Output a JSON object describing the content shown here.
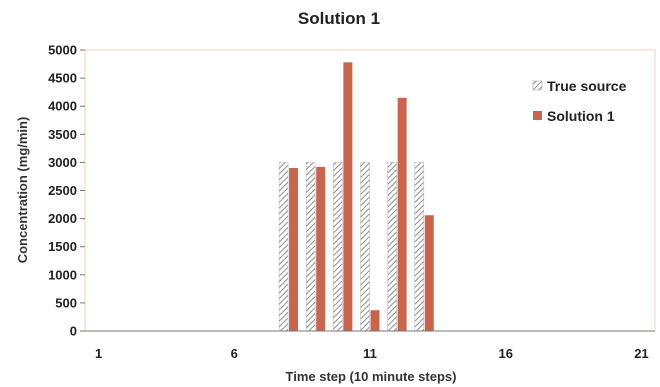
{
  "chart_data": {
    "type": "bar",
    "title": "Solution 1",
    "xlabel": "Time step (10 minute steps)",
    "ylabel": "Concentration (mg/min)",
    "x_range": [
      1,
      21
    ],
    "x_ticks": [
      1,
      6,
      11,
      16,
      21
    ],
    "ylim": [
      0,
      5000
    ],
    "y_ticks": [
      0,
      500,
      1000,
      1500,
      2000,
      2500,
      3000,
      3500,
      4000,
      4500,
      5000
    ],
    "grid": false,
    "legend_position": "right",
    "x": [
      8,
      9,
      10,
      11,
      12,
      13
    ],
    "series": [
      {
        "name": "True source",
        "color": "#9a9a9a",
        "pattern": "diagonal-hatch",
        "values": [
          3000,
          3000,
          3000,
          3000,
          3000,
          3000
        ]
      },
      {
        "name": "Solution 1",
        "color": "#c8654f",
        "pattern": "solid",
        "values": [
          2900,
          2920,
          4780,
          370,
          4150,
          2060
        ]
      }
    ]
  }
}
